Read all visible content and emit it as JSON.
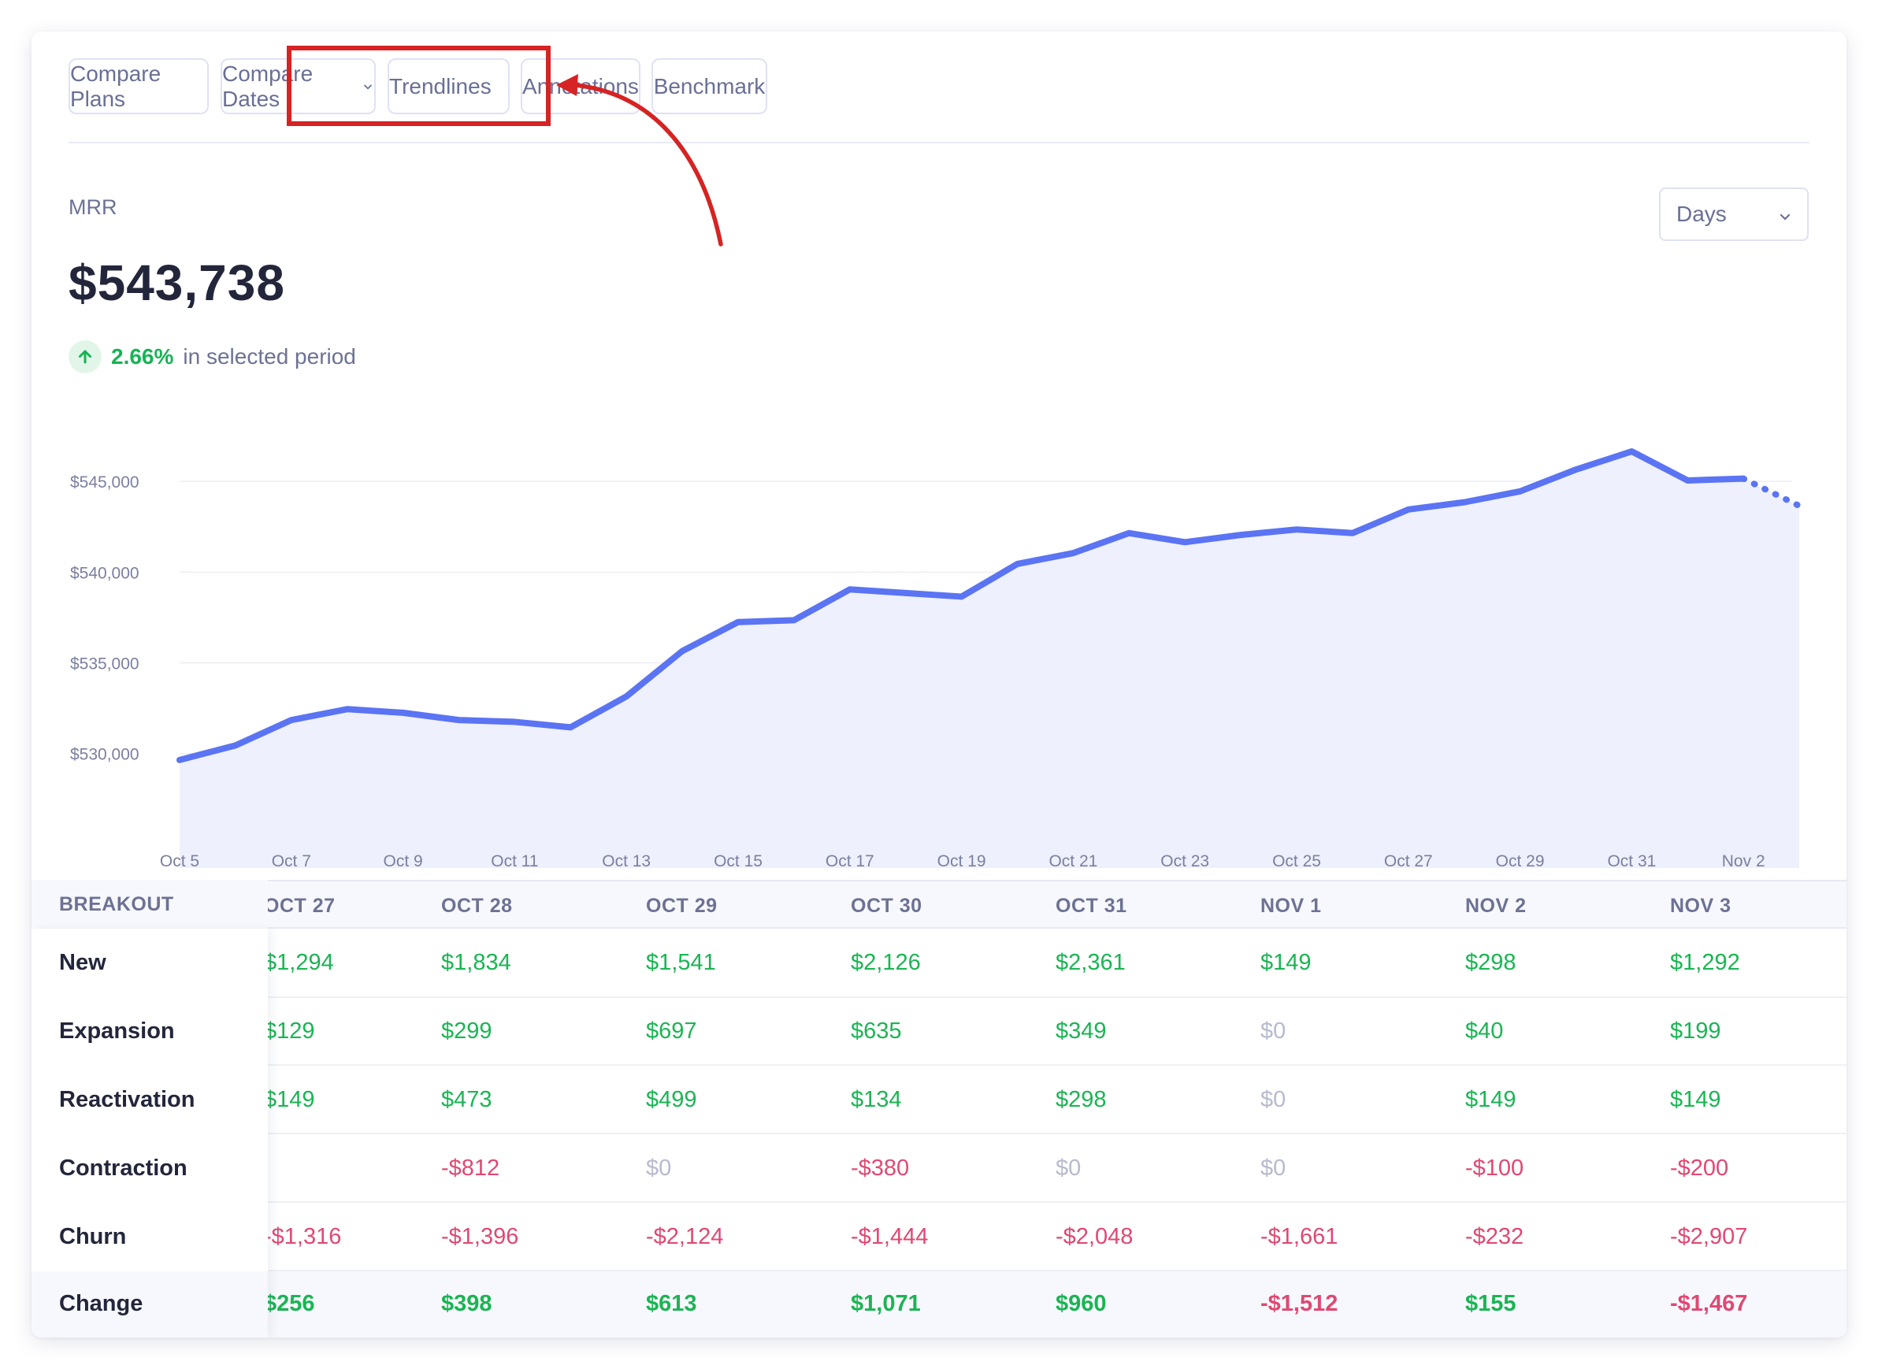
{
  "toolbar": {
    "buttons": [
      {
        "label": "Compare Plans",
        "dropdown": false
      },
      {
        "label": "Compare Dates",
        "dropdown": true
      },
      {
        "label": "Trendlines",
        "dropdown": true
      },
      {
        "label": "Annotations",
        "dropdown": false
      },
      {
        "label": "Benchmark",
        "dropdown": false
      }
    ]
  },
  "metric": {
    "label": "MRR",
    "value": "$543,738",
    "change_pct": "2.66%",
    "change_text": "in selected period"
  },
  "period_select": {
    "value": "Days"
  },
  "chart_data": {
    "type": "area",
    "x": [
      "Oct 5",
      "Oct 6",
      "Oct 7",
      "Oct 8",
      "Oct 9",
      "Oct 10",
      "Oct 11",
      "Oct 12",
      "Oct 13",
      "Oct 14",
      "Oct 15",
      "Oct 16",
      "Oct 17",
      "Oct 18",
      "Oct 19",
      "Oct 20",
      "Oct 21",
      "Oct 22",
      "Oct 23",
      "Oct 24",
      "Oct 25",
      "Oct 26",
      "Oct 27",
      "Oct 28",
      "Oct 29",
      "Oct 30",
      "Oct 31",
      "Nov 1",
      "Nov 2",
      "Nov 3"
    ],
    "values": [
      529650,
      530450,
      531850,
      532450,
      532250,
      531850,
      531750,
      531450,
      533150,
      535650,
      537250,
      537350,
      539050,
      538850,
      538650,
      540450,
      541050,
      542150,
      541650,
      542050,
      542350,
      542150,
      543450,
      543850,
      544450,
      545650,
      546650,
      545050,
      545150,
      543650
    ],
    "projected_from_index": 28,
    "xticks": [
      "Oct 5",
      "Oct 7",
      "Oct 9",
      "Oct 11",
      "Oct 13",
      "Oct 15",
      "Oct 17",
      "Oct 19",
      "Oct 21",
      "Oct 23",
      "Oct 25",
      "Oct 27",
      "Oct 29",
      "Oct 31",
      "Nov 2"
    ],
    "yticks": [
      530000,
      535000,
      540000,
      545000
    ],
    "ytick_labels": [
      "$530,000",
      "$535,000",
      "$540,000",
      "$545,000"
    ],
    "ylim": [
      526300,
      548000
    ],
    "grid": true,
    "line_color": "#5b74f3",
    "fill_color": "#eef0fd"
  },
  "breakout": {
    "header": "BREAKOUT",
    "columns": [
      "OCT 27",
      "OCT 28",
      "OCT 29",
      "OCT 30",
      "OCT 31",
      "NOV 1",
      "NOV 2",
      "NOV 3"
    ],
    "rows": [
      {
        "label": "New",
        "values": [
          "$1,294",
          "$1,834",
          "$1,541",
          "$2,126",
          "$2,361",
          "$149",
          "$298",
          "$1,292"
        ]
      },
      {
        "label": "Expansion",
        "values": [
          "$129",
          "$299",
          "$697",
          "$635",
          "$349",
          "$0",
          "$40",
          "$199"
        ]
      },
      {
        "label": "Reactivation",
        "values": [
          "$149",
          "$473",
          "$499",
          "$134",
          "$298",
          "$0",
          "$149",
          "$149"
        ]
      },
      {
        "label": "Contraction",
        "values": [
          "",
          "-$812",
          "$0",
          "-$380",
          "$0",
          "$0",
          "-$100",
          "-$200"
        ]
      },
      {
        "label": "Churn",
        "values": [
          "-$1,316",
          "-$1,396",
          "-$2,124",
          "-$1,444",
          "-$2,048",
          "-$1,661",
          "-$232",
          "-$2,907"
        ]
      },
      {
        "label": "Change",
        "values": [
          "$256",
          "$398",
          "$613",
          "$1,071",
          "$960",
          "-$1,512",
          "$155",
          "-$1,467"
        ]
      }
    ]
  },
  "colors": {
    "positive": "#1ab553",
    "negative": "#e04872",
    "zero": "#b7bacf",
    "annotation": "#d62323"
  }
}
